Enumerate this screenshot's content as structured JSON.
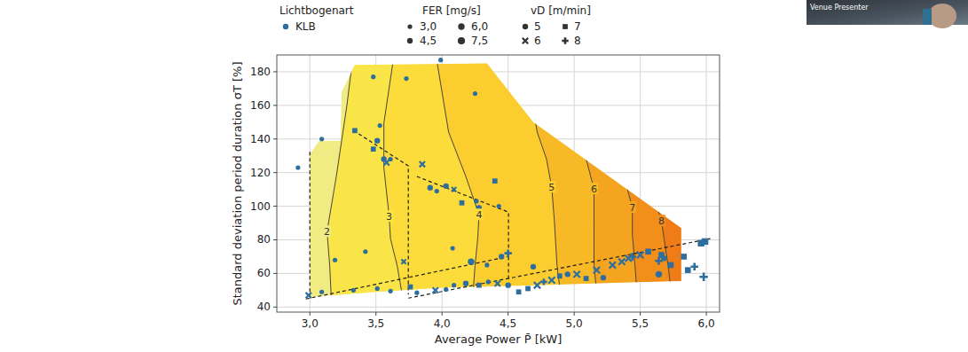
{
  "chart_data": {
    "type": "contour",
    "xlabel": "Average Power P̄ [kW]",
    "ylabel": "Standard deviation period duration σT [%]",
    "xlim": [
      2.75,
      6.1
    ],
    "ylim": [
      37,
      190
    ],
    "xticks": [
      {
        "value": 3,
        "label": "3,0"
      },
      {
        "value": 3.5,
        "label": "3,5"
      },
      {
        "value": 4,
        "label": "4,0"
      },
      {
        "value": 4.5,
        "label": "4,5"
      },
      {
        "value": 5,
        "label": "5,0"
      },
      {
        "value": 5.5,
        "label": "5,5"
      },
      {
        "value": 6,
        "label": "6,0"
      }
    ],
    "yticks": [
      40,
      60,
      80,
      100,
      120,
      140,
      160,
      180
    ],
    "grid": true,
    "legend": "top",
    "legend_title": "Lichtbogenart",
    "color": "#f0eb82",
    "region": {
      "x": [
        3.0,
        3.5,
        4.0,
        4.7,
        5.35,
        5.81,
        5.81,
        4.69,
        4.34,
        3.34,
        3.24,
        3.23,
        3.07,
        3.0
      ],
      "y": [
        46,
        49,
        51.5,
        53,
        54.5,
        55.5,
        87,
        150,
        185,
        184,
        168,
        139,
        139,
        131
      ]
    },
    "contours": [
      {
        "level": 2,
        "color": "#f9e547",
        "x": [
          3.18,
          3.17,
          3.15,
          3.13,
          3.2,
          3.28,
          3.33
        ],
        "y": [
          22.6,
          33.1,
          64.8,
          84.9,
          117.7,
          159.9,
          191.6
        ]
      },
      {
        "level": 3,
        "color": "#fbdc3a",
        "x": [
          3.73,
          3.66,
          3.61,
          3.6,
          3.56,
          3.56,
          3.64
        ],
        "y": [
          33.1,
          64.8,
          80.7,
          93.9,
          122.9,
          149.4,
          191.6
        ]
      },
      {
        "level": 4,
        "color": "#fbcd2e",
        "x": [
          4.22,
          4.25,
          4.27,
          4.28,
          4.18,
          4.05,
          3.95
        ],
        "y": [
          33.1,
          64.8,
          80.7,
          94.9,
          117.7,
          144.1,
          191.6
        ]
      },
      {
        "level": 5,
        "color": "#f8b926",
        "x": [
          4.92,
          4.87,
          4.85,
          4.83,
          4.79,
          4.72,
          4.62
        ],
        "y": [
          33.1,
          64.8,
          91.2,
          111.3,
          128.2,
          144.1,
          191.6
        ]
      },
      {
        "level": 6,
        "color": "#f5a41f",
        "x": [
          5.19,
          5.15,
          5.15,
          5.15,
          5.09,
          4.99,
          4.82
        ],
        "y": [
          33.1,
          64.8,
          91.2,
          110.3,
          128.2,
          149.4,
          191.6
        ]
      },
      {
        "level": 7,
        "color": "#f28f1a",
        "x": [
          5.49,
          5.46,
          5.44,
          5.44,
          5.36,
          5.22,
          5.02
        ],
        "y": [
          33.1,
          64.8,
          83.3,
          99.2,
          122.9,
          149.4,
          191.6
        ]
      },
      {
        "level": 8,
        "color": "#ef7c16",
        "x": [
          5.76,
          5.71,
          5.68,
          5.66,
          5.59,
          5.46,
          5.22
        ],
        "y": [
          33.1,
          64.8,
          80.7,
          91.2,
          109.7,
          138.8,
          191.6
        ]
      }
    ],
    "guides": [
      {
        "x": [
          3.0,
          3.0
        ],
        "y": [
          132.4,
          46.3
        ]
      },
      {
        "x": [
          3.33,
          3.745,
          3.745
        ],
        "y": [
          145.1,
          124.0,
          47.4
        ]
      },
      {
        "x": [
          3.81,
          4.503,
          4.503
        ],
        "y": [
          117.7,
          96.5,
          55.3
        ]
      },
      {
        "x": [
          2.97,
          4.503
        ],
        "y": [
          44.8,
          70.1
        ]
      },
      {
        "x": [
          3.745,
          6.03
        ],
        "y": [
          45.3,
          80.7
        ]
      }
    ],
    "series": [
      {
        "name": "KLB",
        "color": "#2d6e9e",
        "type": "scatter",
        "x": [
          2.91,
          3.09,
          3.48,
          3.73,
          3.99,
          4.25,
          3.19,
          3.34,
          3.51,
          3.53,
          3.56,
          3.58,
          3.61,
          3.48,
          3.85,
          3.91,
          3.96,
          4.03,
          4.09,
          4.15,
          4.26,
          4.28,
          4.4,
          4.43,
          4.08,
          4.45,
          4.5,
          4.34,
          4.22,
          3.71,
          3.42,
          2.99,
          3.09,
          3.33,
          3.51,
          3.61,
          3.76,
          3.81,
          3.95,
          4.03,
          4.09,
          4.18,
          4.28,
          4.35,
          4.42,
          4.5,
          4.58,
          4.65,
          4.72,
          4.77,
          4.83,
          4.89,
          4.95,
          5.02,
          5.09,
          5.17,
          5.29,
          5.36,
          5.44,
          5.5,
          5.56,
          5.64,
          5.68,
          5.73,
          5.83,
          5.64,
          5.86,
          5.96,
          5.99,
          5.91,
          5.98,
          5.66,
          5.41,
          4.69,
          5.22
        ],
        "values": [
          123,
          140,
          177,
          176,
          187,
          167,
          68,
          145,
          139,
          148,
          128,
          126,
          128,
          134,
          125,
          111,
          109,
          112,
          110,
          102,
          103,
          99,
          115,
          100,
          75,
          70,
          72,
          65,
          67,
          67,
          73,
          47,
          49,
          50,
          51,
          49.5,
          52,
          48.5,
          50,
          50.5,
          53,
          54,
          53,
          55,
          54,
          53,
          49,
          51,
          53,
          55,
          56,
          58.5,
          59.5,
          59.5,
          57,
          62,
          65,
          67,
          70,
          71,
          73,
          67.5,
          69,
          65,
          70,
          59.5,
          62,
          78,
          79,
          64,
          58,
          71,
          69,
          64,
          57.5
        ],
        "fer": [
          3,
          3,
          3,
          3,
          3,
          3,
          3,
          4.5,
          4.5,
          3,
          4.5,
          4.5,
          3,
          4.5,
          4.5,
          4.5,
          3,
          4.5,
          3,
          4.5,
          3,
          4.5,
          4.5,
          3,
          3,
          4.5,
          6,
          3,
          6,
          3,
          3,
          4.5,
          3,
          3,
          3,
          3,
          4.5,
          3,
          4.5,
          3,
          3,
          4.5,
          4.5,
          3,
          4.5,
          4.5,
          4.5,
          4.5,
          6,
          4.5,
          6,
          4.5,
          4.5,
          6,
          4.5,
          6,
          6,
          6,
          6,
          6,
          6,
          6,
          4.5,
          6,
          6,
          6,
          6,
          7.5,
          7.5,
          6,
          7.5,
          6,
          6,
          4.5,
          4.5
        ],
        "vd": [
          5,
          5,
          5,
          5,
          5,
          5,
          5,
          7,
          5,
          5,
          5,
          6,
          5,
          7,
          6,
          5,
          5,
          5,
          6,
          7,
          5,
          5,
          7,
          5,
          5,
          5,
          8,
          5,
          5,
          6,
          5,
          6,
          5,
          5,
          5,
          5,
          7,
          5,
          6,
          5,
          5,
          5,
          7,
          5,
          6,
          5,
          7,
          7,
          6,
          8,
          6,
          7,
          5,
          6,
          7,
          6,
          6,
          6,
          8,
          6,
          7,
          8,
          5,
          7,
          7,
          5,
          7,
          7,
          7,
          8,
          8,
          7,
          6,
          5,
          5
        ]
      }
    ],
    "size_legend": {
      "title": "FER [mg/s]",
      "values": [
        {
          "value": 3,
          "label": "3,0"
        },
        {
          "value": 4.5,
          "label": "4,5"
        },
        {
          "value": 6,
          "label": "6,0"
        },
        {
          "value": 7.5,
          "label": "7,5"
        }
      ]
    },
    "marker_legend": {
      "title": "vD [m/min]",
      "values": [
        5,
        6,
        7,
        8
      ]
    },
    "annotations": [
      "Venue Presenter"
    ]
  }
}
